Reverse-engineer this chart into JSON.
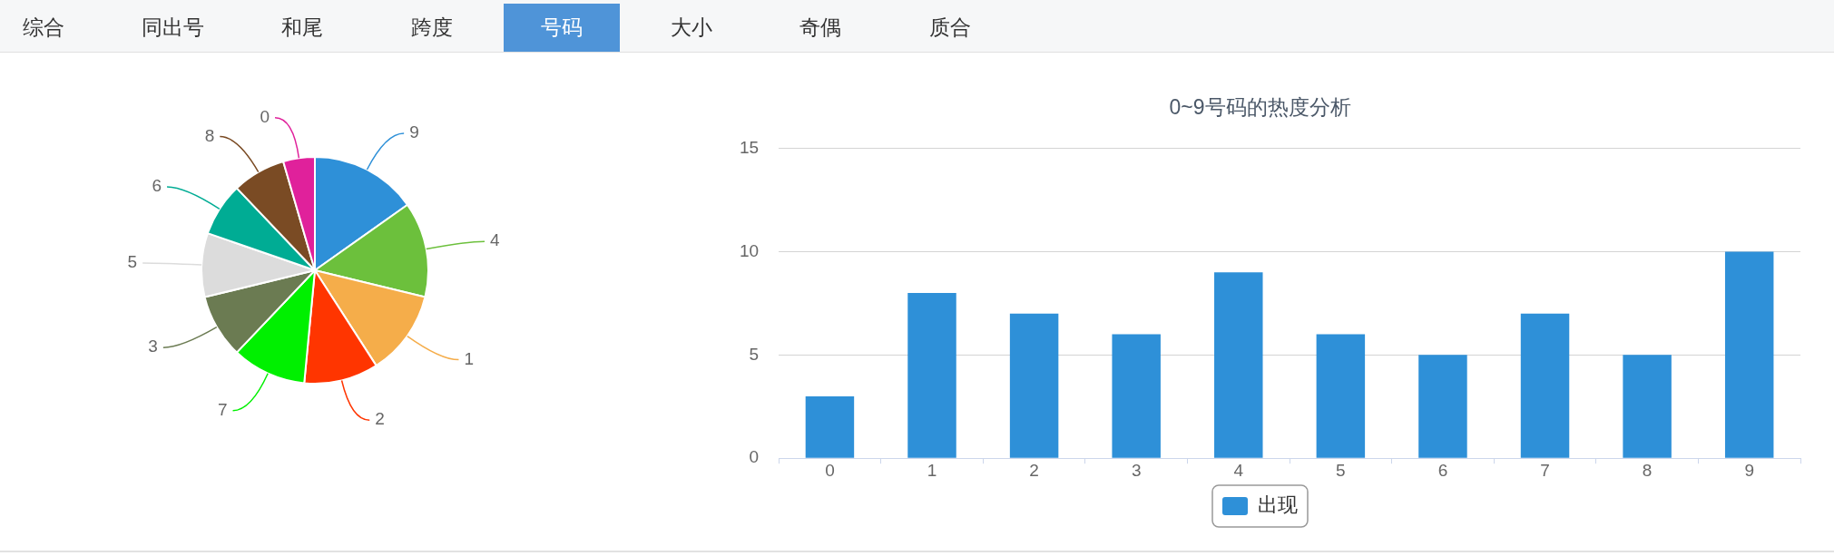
{
  "chart_data": [
    {
      "type": "other",
      "categories": [
        "综合",
        "同出号",
        "和尾",
        "跨度",
        "号码",
        "大小",
        "奇偶",
        "质合"
      ],
      "colors": [
        null,
        null,
        null,
        null,
        "#4f94d8",
        null,
        null,
        null
      ]
    },
    {
      "type": "pie",
      "categories": [
        "9",
        "4",
        "1",
        "2",
        "7",
        "3",
        "5",
        "6",
        "8",
        "0"
      ],
      "values": [
        15.2,
        13.6,
        12.1,
        10.6,
        10.6,
        9.1,
        9.1,
        7.6,
        7.6,
        4.5
      ],
      "colors": [
        "#2e90d8",
        "#6cc03c",
        "#f5ad4a",
        "#ff3500",
        "#00f000",
        "#6b7b52",
        "#dcdcdc",
        "#00ac94",
        "#7a4b24",
        "#e0219b"
      ]
    },
    {
      "type": "bar",
      "title": "0~9号码的热度分析",
      "categories": [
        "0",
        "1",
        "2",
        "3",
        "4",
        "5",
        "6",
        "7",
        "8",
        "9"
      ],
      "series": [
        {
          "name": "出现",
          "color": "#2e90d8",
          "values": [
            3,
            8,
            7,
            6,
            9,
            6,
            5,
            7,
            5,
            10
          ]
        }
      ],
      "ylim": [
        0,
        15
      ],
      "yticks": [
        0,
        5,
        10,
        15
      ],
      "grid": "y",
      "legend": "bottom"
    }
  ]
}
